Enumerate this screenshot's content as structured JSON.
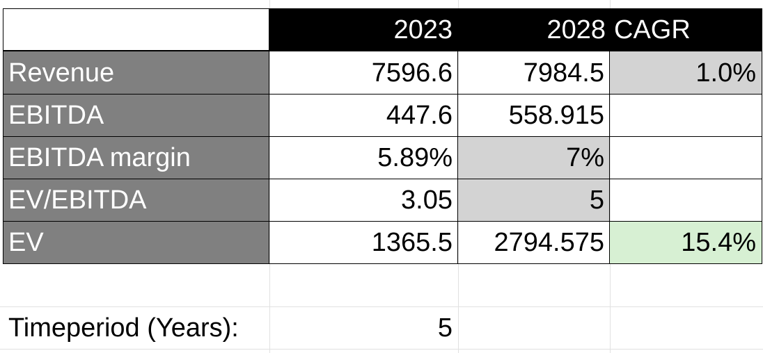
{
  "table": {
    "header": {
      "col1": "",
      "col2": "2023",
      "col3": "2028",
      "col4": "CAGR"
    },
    "rows": [
      {
        "label": "Revenue",
        "v2023": "7596.6",
        "v2028": "7984.5",
        "cagr": "1.0%"
      },
      {
        "label": "EBITDA",
        "v2023": "447.6",
        "v2028": "558.915",
        "cagr": ""
      },
      {
        "label": "EBITDA margin",
        "v2023": "5.89%",
        "v2028": "7%",
        "cagr": ""
      },
      {
        "label": "EV/EBITDA",
        "v2023": "3.05",
        "v2028": "5",
        "cagr": ""
      },
      {
        "label": "EV",
        "v2023": "1365.5",
        "v2028": "2794.575",
        "cagr": "15.4%"
      }
    ]
  },
  "timeperiod": {
    "label": "Timeperiod (Years):",
    "value": "5"
  },
  "colors": {
    "header_bg": "#000000",
    "label_bg": "#808080",
    "input_gray": "#d3d3d3",
    "result_green": "#d7f0d3"
  }
}
